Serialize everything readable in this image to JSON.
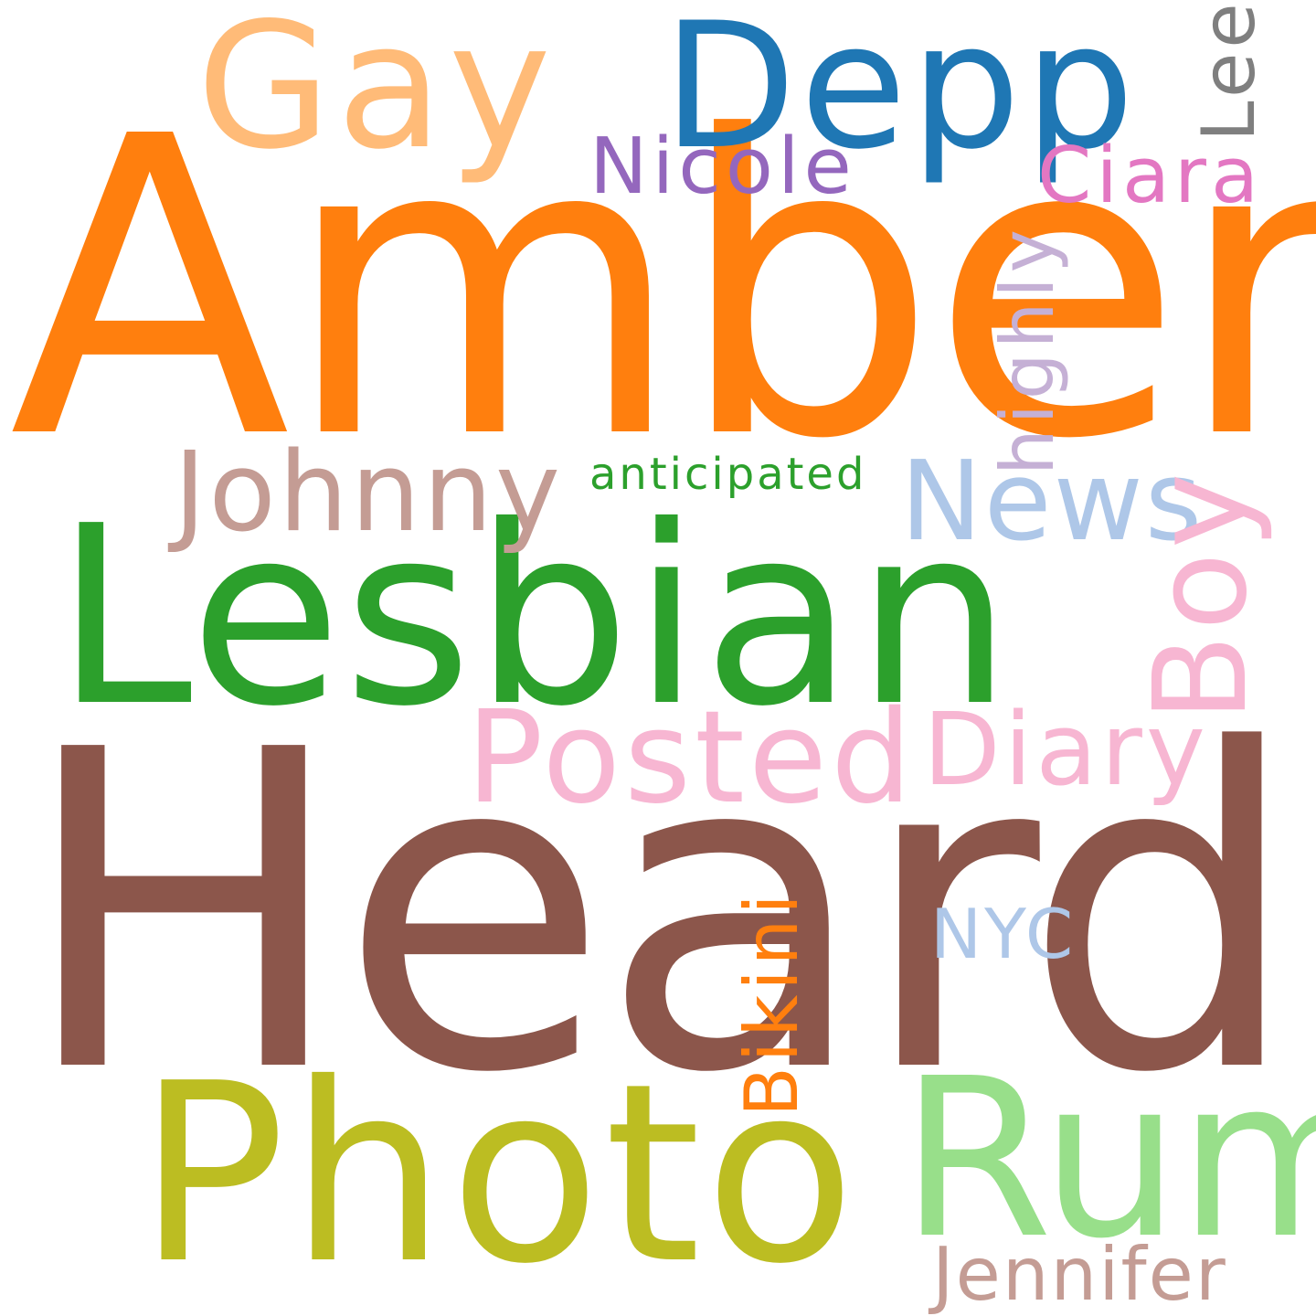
{
  "words": {
    "amber": {
      "text": "Amber",
      "color": "#ff7f0e"
    },
    "heard": {
      "text": "Heard",
      "color": "#8c564b"
    },
    "lesbian": {
      "text": "Lesbian",
      "color": "#2ca02c"
    },
    "photo": {
      "text": "Photo",
      "color": "#bcbd22"
    },
    "rum": {
      "text": "Rum",
      "color": "#98df8a"
    },
    "gay": {
      "text": "Gay",
      "color": "#ffbb78"
    },
    "depp": {
      "text": "Depp",
      "color": "#1f77b4"
    },
    "posted": {
      "text": "Posted",
      "color": "#f7b6d2"
    },
    "diary": {
      "text": "Diary",
      "color": "#f7b6d2"
    },
    "johnny": {
      "text": "Johnny",
      "color": "#c49c94"
    },
    "news": {
      "text": "News",
      "color": "#aec7e8"
    },
    "boy": {
      "text": "Boy",
      "color": "#f7b6d2"
    },
    "nicole": {
      "text": "Nicole",
      "color": "#9467bd"
    },
    "ciara": {
      "text": "Ciara",
      "color": "#e377c2"
    },
    "lee": {
      "text": "Lee",
      "color": "#7f7f7f"
    },
    "highly": {
      "text": "highly",
      "color": "#c5b0d5"
    },
    "anticipated": {
      "text": "anticipated",
      "color": "#2ca02c"
    },
    "bikini": {
      "text": "Bikini",
      "color": "#ff7f0e"
    },
    "nyc": {
      "text": "NYC",
      "color": "#aec7e8"
    },
    "jennifer": {
      "text": "Jennifer",
      "color": "#c49c94"
    }
  }
}
